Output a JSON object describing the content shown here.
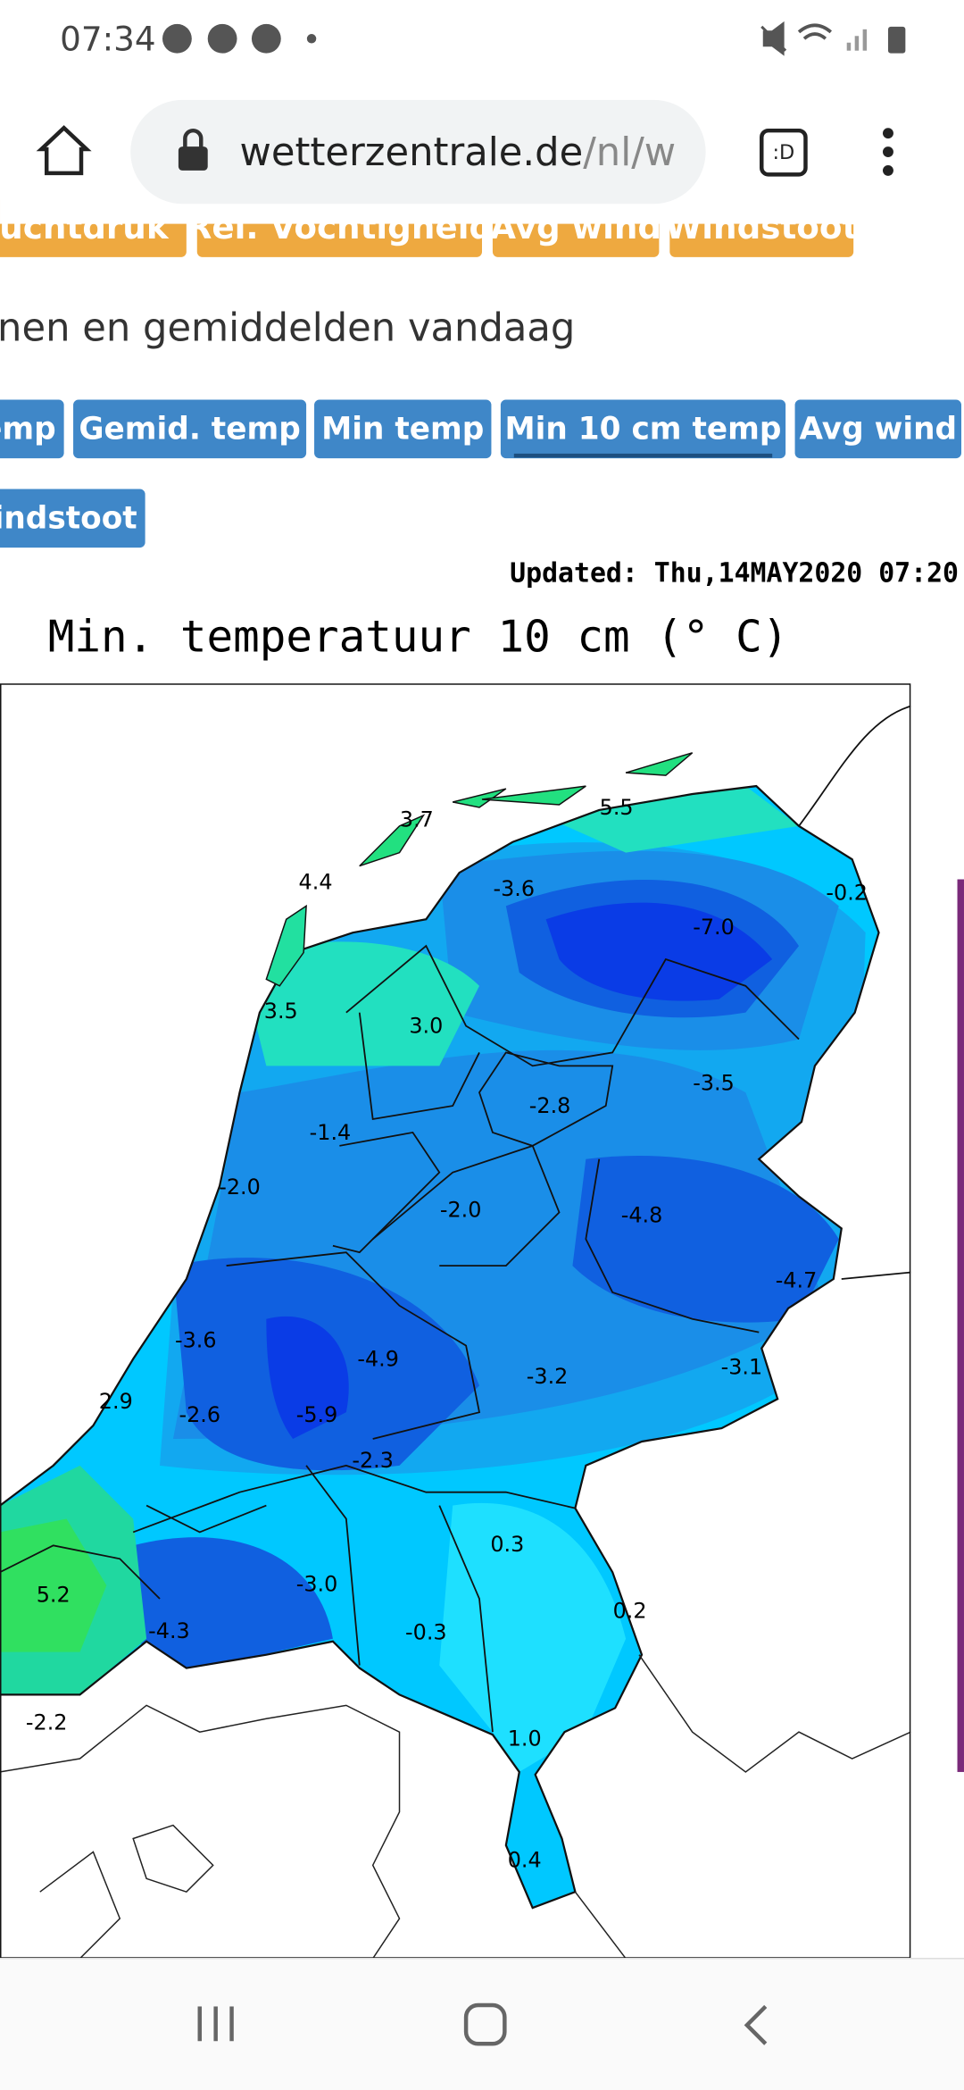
{
  "status_bar": {
    "time": "07:34"
  },
  "browser": {
    "url_domain": "wetterzentrale.de",
    "url_path": "/nl/w",
    "tab_icon": ":D"
  },
  "top_tabs": [
    "Luchtdruk",
    "Rel. Vochtigheid",
    "Avg wind",
    "Windstoot"
  ],
  "heading": "nen en gemiddelden vandaag",
  "buttons": [
    "emp",
    "Gemid. temp",
    "Min temp",
    "Min 10 cm temp",
    "Avg wind",
    "indstoot"
  ],
  "map": {
    "updated": "Updated: Thu,14MAY2020 07:20",
    "title": "Min. temperatuur 10 cm (° C)",
    "labels": [
      "3.7",
      "5.5",
      "4.4",
      "-3.6",
      "-0.2",
      "-7.0",
      "3.5",
      "3.0",
      "-2.8",
      "-3.5",
      "-1.4",
      "-2.0",
      "-2.0",
      "-4.8",
      "-4.7",
      "-3.6",
      "-4.9",
      "-3.2",
      "-3.1",
      "2.9",
      "-2.6",
      "-5.9",
      "-2.3",
      "0.3",
      "-3.0",
      "5.2",
      "0.2",
      "-4.3",
      "-0.3",
      "-2.2",
      "1.0",
      "0.4"
    ]
  }
}
